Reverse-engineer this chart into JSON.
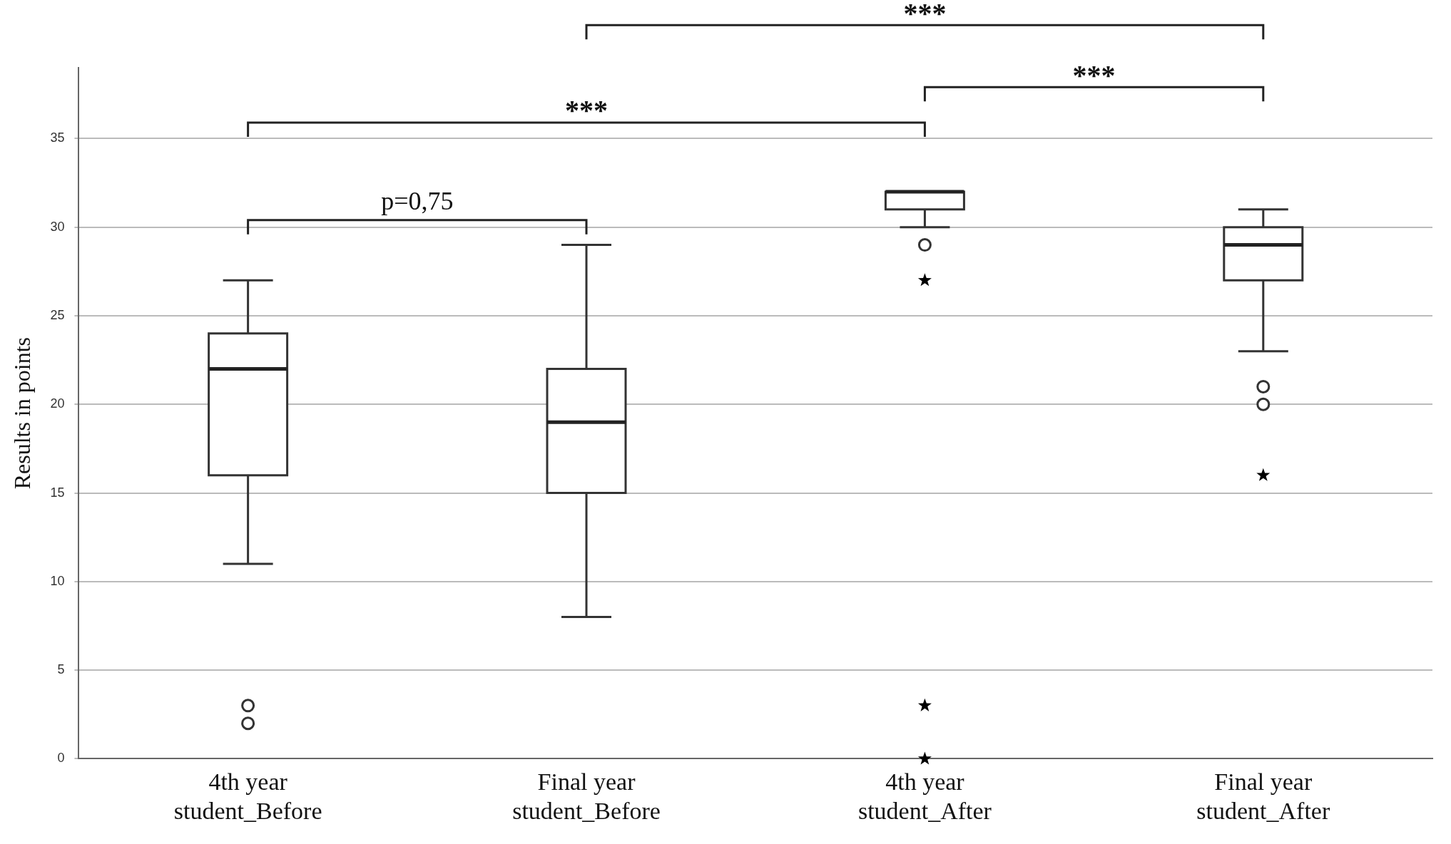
{
  "chart_data": {
    "type": "box",
    "ylabel": "Results in points",
    "categories": [
      "4th year student_Before",
      "Final year student_Before",
      "4th year student_After",
      "Final year student_After"
    ],
    "boxes": [
      {
        "low": 11,
        "q1": 16,
        "median": 22,
        "q3": 24,
        "high": 27,
        "outliers": [
          2,
          3
        ]
      },
      {
        "low": 8,
        "q1": 15,
        "median": 19,
        "q3": 22,
        "high": 29
      },
      {
        "low": 30,
        "q1": 31,
        "median": 32,
        "q3": 32,
        "high": 32,
        "outliers": [
          29
        ]
      },
      {
        "low": 23,
        "q1": 27,
        "median": 29,
        "q3": 30,
        "high": 31,
        "outliers": [
          21,
          20
        ]
      }
    ],
    "series": [
      {
        "type": "scatter",
        "marker": "star",
        "color": "#000000",
        "x": [
          "4th year student_After",
          "4th year student_After",
          "4th year student_After",
          "Final year student_After"
        ],
        "values": [
          27,
          3,
          0,
          16
        ]
      }
    ],
    "ylim": [
      0,
      39
    ],
    "yticks": [
      0,
      5,
      10,
      15,
      20,
      25,
      30,
      35
    ],
    "grid": "y",
    "legend": false,
    "annotations": [
      "p=0,75",
      "***",
      "***",
      "***"
    ]
  }
}
